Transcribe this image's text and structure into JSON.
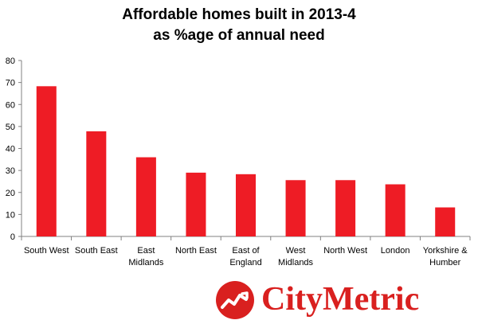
{
  "chart_data": {
    "type": "bar",
    "title": [
      "Affordable homes built in 2013-4",
      "as %age of annual need"
    ],
    "xlabel": "",
    "ylabel": "",
    "categories": [
      [
        "South West"
      ],
      [
        "South East"
      ],
      [
        "East",
        "Midlands"
      ],
      [
        "North East"
      ],
      [
        "East of",
        "England"
      ],
      [
        "West",
        "Midlands"
      ],
      [
        "North West"
      ],
      [
        "London"
      ],
      [
        "Yorkshire &",
        "Humber"
      ]
    ],
    "values": [
      68.3,
      47.8,
      36,
      29,
      28.3,
      25.6,
      25.6,
      23.7,
      13.2
    ],
    "ylim": [
      0,
      80
    ],
    "yticks": [
      0,
      10,
      20,
      30,
      40,
      50,
      60,
      70,
      80
    ],
    "grid": false,
    "legend": "none",
    "bar_color": "#ee1c25"
  },
  "brand": {
    "name": "CityMetric",
    "color": "#d9201f",
    "logo_icon": "trending-chart-logo-icon"
  }
}
